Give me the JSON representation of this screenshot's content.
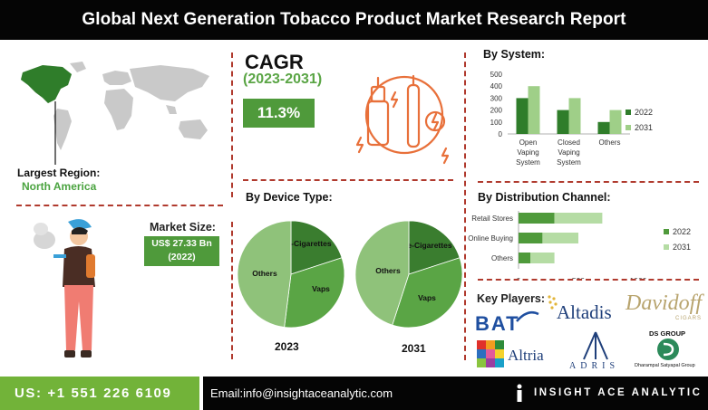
{
  "title": "Global Next Generation Tobacco Product Market Research Report",
  "region": {
    "label": "Largest Region:",
    "value": "North America"
  },
  "market_size": {
    "label": "Market Size:",
    "line1": "US$ 27.33 Bn",
    "line2": "(2022)"
  },
  "cagr": {
    "title": "CAGR",
    "years": "(2023-2031)",
    "value": "11.3%"
  },
  "colors": {
    "dark_green": "#2f7d2a",
    "mid_green": "#5aa545",
    "light_green": "#9fcf88",
    "accent_red": "#b03a2e",
    "icon_orange": "#e8703a"
  },
  "icons": {
    "map": "world-map-icon",
    "person": "vaping-person-icon",
    "devices": "vape-devices-icon"
  },
  "chart_data": [
    {
      "type": "bar",
      "title": "By System:",
      "categories": [
        "Open Vaping System",
        "Closed Vaping System",
        "Others"
      ],
      "category_lines": [
        [
          "Open",
          "Vaping",
          "System"
        ],
        [
          "Closed",
          "Vaping",
          "System"
        ],
        [
          "Others"
        ]
      ],
      "series": [
        {
          "name": "2022",
          "values": [
            300,
            200,
            100
          ],
          "color": "#2f7d2a"
        },
        {
          "name": "2031",
          "values": [
            400,
            300,
            200
          ],
          "color": "#9fcf88"
        }
      ],
      "ylim": [
        0,
        500
      ],
      "yticks": [
        0,
        100,
        200,
        300,
        400,
        500
      ],
      "grid": false,
      "legend": "right"
    },
    {
      "type": "pie",
      "title": "By Device Type:",
      "year": "2023",
      "slices": [
        {
          "label": "e-Cigarettes",
          "value": 20,
          "color": "#3a7d2f"
        },
        {
          "label": "Vaps",
          "value": 32,
          "color": "#5aa545"
        },
        {
          "label": "Others",
          "value": 48,
          "color": "#8fc27a"
        }
      ]
    },
    {
      "type": "pie",
      "year": "2031",
      "slices": [
        {
          "label": "e-Cigarettes",
          "value": 20,
          "color": "#3a7d2f"
        },
        {
          "label": "Vaps",
          "value": 35,
          "color": "#5aa545"
        },
        {
          "label": "Others",
          "value": 45,
          "color": "#8fc27a"
        }
      ]
    },
    {
      "type": "bar",
      "orientation": "horizontal",
      "stacked": true,
      "title": "By Distribution Channel:",
      "categories": [
        "Retail Stores",
        "Online Buying",
        "Others"
      ],
      "series": [
        {
          "name": "2022",
          "values": [
            300,
            200,
            100
          ],
          "color": "#4f9a3b"
        },
        {
          "name": "2031",
          "values": [
            400,
            300,
            200
          ],
          "color": "#b5dca4"
        }
      ],
      "xlim": [
        0,
        1000
      ],
      "xticks": [
        0,
        500,
        1000
      ],
      "grid": false,
      "legend": "right"
    }
  ],
  "key_players": {
    "title": "Key Players:",
    "logos": [
      "BAT",
      "Altadis",
      "Davidoff",
      "CIGARS",
      "Altria",
      "ADRIS",
      "DS GROUP",
      "Dharampal Satyapal Group"
    ]
  },
  "footer": {
    "phone": "US: +1 551 226 6109",
    "email": "Email:info@insightaceanalytic.com",
    "brand": "INSIGHT ACE ANALYTIC"
  }
}
